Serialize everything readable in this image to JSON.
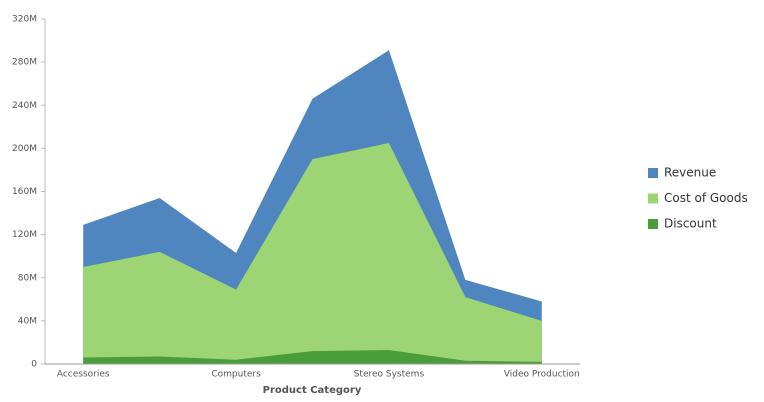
{
  "chart_data": {
    "type": "area",
    "x_label": "Product Category",
    "categories": [
      "Accessories",
      null,
      "Computers",
      null,
      "Stereo Systems",
      null,
      "Video Production"
    ],
    "series": [
      {
        "name": "Revenue",
        "color": "#4f86c0",
        "values": [
          129000000,
          154000000,
          103000000,
          246000000,
          291000000,
          78000000,
          58000000
        ]
      },
      {
        "name": "Cost of Goods",
        "color": "#9dd574",
        "values": [
          90000000,
          104000000,
          69000000,
          190000000,
          205000000,
          62000000,
          40000000
        ]
      },
      {
        "name": "Discount",
        "color": "#4a9e3a",
        "values": [
          6000000,
          7000000,
          4000000,
          12000000,
          13000000,
          3000000,
          2000000
        ]
      }
    ],
    "ylim": [
      0,
      320000000
    ],
    "yticks": [
      {
        "value": 0,
        "label": "0"
      },
      {
        "value": 40000000,
        "label": "40M"
      },
      {
        "value": 80000000,
        "label": "80M"
      },
      {
        "value": 120000000,
        "label": "120M"
      },
      {
        "value": 160000000,
        "label": "160M"
      },
      {
        "value": 200000000,
        "label": "200M"
      },
      {
        "value": 240000000,
        "label": "240M"
      },
      {
        "value": 280000000,
        "label": "280M"
      },
      {
        "value": 320000000,
        "label": "320M"
      }
    ],
    "grid": false,
    "legend": "right"
  }
}
